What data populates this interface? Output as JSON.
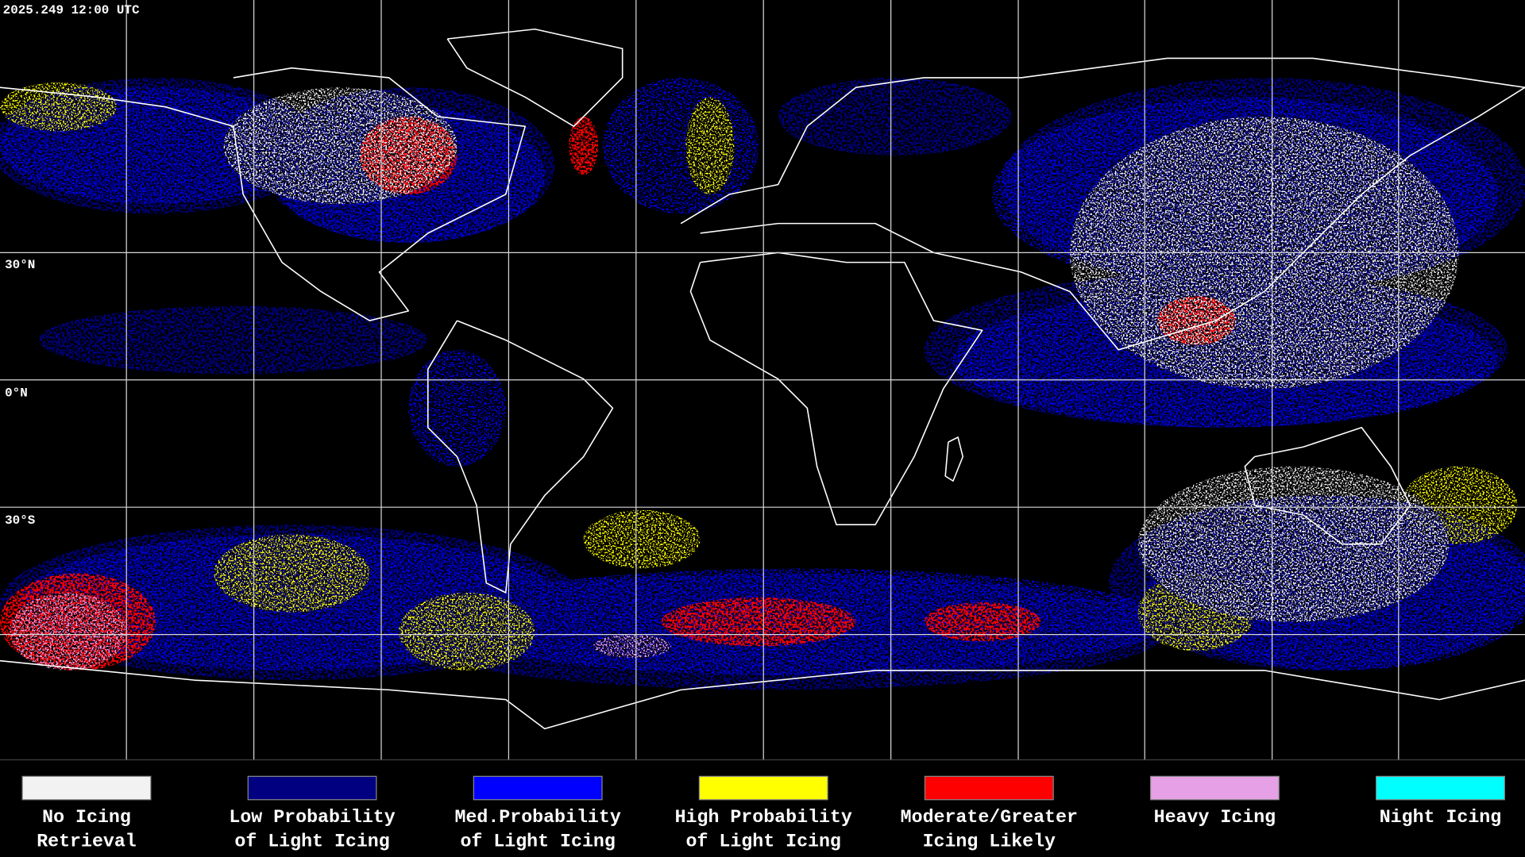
{
  "header": {
    "timestamp": "2025.249 12:00 UTC"
  },
  "lat_labels": [
    "30°N",
    "0°N",
    "30°S"
  ],
  "legend": [
    {
      "lines": [
        "No Icing",
        "Retrieval"
      ],
      "color": "#f2f2f2"
    },
    {
      "lines": [
        "Low Probability",
        "of Light Icing"
      ],
      "color": "#000080"
    },
    {
      "lines": [
        "Med.Probability",
        "of Light Icing"
      ],
      "color": "#0000ff"
    },
    {
      "lines": [
        "High Probability",
        "of Light Icing"
      ],
      "color": "#ffff00"
    },
    {
      "lines": [
        "Moderate/Greater",
        "Icing Likely"
      ],
      "color": "#ff0000"
    },
    {
      "lines": [
        "Heavy Icing"
      ],
      "color": "#e6a0e6"
    },
    {
      "lines": [
        "Night Icing"
      ],
      "color": "#00ffff"
    }
  ]
}
